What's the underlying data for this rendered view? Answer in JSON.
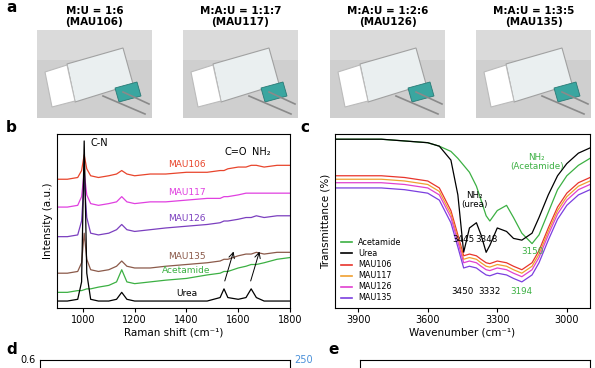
{
  "panel_labels": [
    "a",
    "b",
    "c",
    "d",
    "e"
  ],
  "photos": [
    {
      "ratio": "M:U = 1:6",
      "name": "(MAU106)"
    },
    {
      "ratio": "M:A:U = 1:1:7",
      "name": "(MAU117)"
    },
    {
      "ratio": "M:A:U = 1:2:6",
      "name": "(MAU126)"
    },
    {
      "ratio": "M:A:U = 1:3:5",
      "name": "(MAU135)"
    }
  ],
  "chart_data": [
    {
      "type": "line",
      "x_label": "Raman shift (cm⁻¹)",
      "y_label": "Intensity (a.u.)",
      "xlim": [
        900,
        1800
      ],
      "xticks": [
        1000,
        1200,
        1400,
        1600,
        1800
      ],
      "ylim": [
        0,
        10
      ],
      "tick_labels": "x",
      "x": [
        900,
        940,
        980,
        995,
        1005,
        1015,
        1030,
        1060,
        1100,
        1130,
        1150,
        1170,
        1200,
        1260,
        1320,
        1400,
        1480,
        1530,
        1545,
        1560,
        1600,
        1630,
        1650,
        1670,
        1700,
        1750,
        1800
      ],
      "series": [
        {
          "name": "MAU106",
          "color": "#e8452c",
          "values": [
            7.4,
            7.4,
            7.5,
            7.9,
            8.8,
            8.0,
            7.6,
            7.5,
            7.6,
            7.7,
            7.9,
            7.7,
            7.6,
            7.7,
            7.7,
            7.8,
            7.8,
            7.9,
            7.9,
            8.0,
            8.1,
            8.1,
            8.2,
            8.2,
            8.1,
            8.2,
            8.2
          ]
        },
        {
          "name": "MAU117",
          "color": "#e040e0",
          "values": [
            5.8,
            5.8,
            5.9,
            6.4,
            7.8,
            6.5,
            6.0,
            5.9,
            6.0,
            6.1,
            6.4,
            6.1,
            6.0,
            6.1,
            6.1,
            6.2,
            6.3,
            6.3,
            6.4,
            6.4,
            6.5,
            6.6,
            6.6,
            6.6,
            6.6,
            6.6,
            6.6
          ]
        },
        {
          "name": "MAU126",
          "color": "#7b3fbf",
          "values": [
            4.1,
            4.1,
            4.2,
            5.0,
            7.4,
            5.2,
            4.3,
            4.2,
            4.3,
            4.5,
            4.8,
            4.5,
            4.4,
            4.5,
            4.6,
            4.7,
            4.8,
            4.9,
            5.0,
            5.0,
            5.1,
            5.2,
            5.2,
            5.3,
            5.2,
            5.3,
            5.3
          ]
        },
        {
          "name": "MAU135",
          "color": "#8b5a4a",
          "values": [
            2.0,
            2.0,
            2.1,
            2.6,
            4.3,
            2.8,
            2.2,
            2.1,
            2.2,
            2.4,
            2.7,
            2.4,
            2.3,
            2.3,
            2.4,
            2.5,
            2.6,
            2.7,
            2.8,
            2.8,
            3.0,
            3.1,
            3.1,
            3.2,
            3.1,
            3.2,
            3.2
          ]
        },
        {
          "name": "Acetamide",
          "color": "#3cb043",
          "values": [
            0.9,
            0.9,
            1.0,
            1.0,
            1.05,
            1.1,
            1.1,
            1.2,
            1.3,
            1.5,
            2.2,
            1.5,
            1.4,
            1.5,
            1.6,
            1.7,
            1.9,
            2.0,
            2.1,
            2.1,
            2.3,
            2.4,
            2.5,
            2.5,
            2.6,
            2.8,
            2.9
          ]
        },
        {
          "name": "Urea",
          "color": "#000000",
          "values": [
            0.4,
            0.4,
            0.5,
            1.5,
            9.6,
            2.0,
            0.5,
            0.4,
            0.4,
            0.5,
            0.9,
            0.5,
            0.4,
            0.4,
            0.4,
            0.4,
            0.4,
            0.6,
            1.1,
            0.6,
            0.5,
            0.6,
            1.1,
            0.6,
            0.4,
            0.4,
            0.4
          ]
        }
      ],
      "annotations": [
        {
          "text": "C-N",
          "x": 1010,
          "color": "#000000"
        },
        {
          "text": "C=O",
          "x": 1590,
          "color": "#000000"
        },
        {
          "text": "NH₂",
          "x": 1690,
          "color": "#000000"
        }
      ]
    },
    {
      "type": "line",
      "x_label": "Wavenumber (cm⁻¹)",
      "y_label": "Transmittance (%)",
      "xlim": [
        4000,
        2900
      ],
      "xticks": [
        3900,
        3600,
        3300,
        3000
      ],
      "ylim": [
        0,
        10
      ],
      "tick_labels": "x",
      "legend": "lower left",
      "x": [
        4000,
        3900,
        3800,
        3700,
        3600,
        3550,
        3500,
        3470,
        3445,
        3420,
        3390,
        3370,
        3348,
        3332,
        3300,
        3260,
        3230,
        3194,
        3150,
        3120,
        3080,
        3040,
        3000,
        2950,
        2900
      ],
      "series": [
        {
          "name": "Acetamide",
          "color": "#3cb043",
          "values": [
            9.7,
            9.7,
            9.7,
            9.6,
            9.5,
            9.3,
            9.0,
            8.6,
            8.2,
            7.8,
            7.0,
            6.2,
            5.3,
            5.0,
            5.6,
            5.9,
            5.2,
            4.3,
            3.7,
            4.2,
            5.5,
            6.8,
            7.6,
            8.2,
            8.6
          ]
        },
        {
          "name": "Urea",
          "color": "#000000",
          "values": [
            9.7,
            9.7,
            9.7,
            9.6,
            9.5,
            9.3,
            8.5,
            6.5,
            3.2,
            4.6,
            4.9,
            4.2,
            3.2,
            3.6,
            4.6,
            4.4,
            4.0,
            3.9,
            4.3,
            5.2,
            6.5,
            7.6,
            8.3,
            8.9,
            9.2
          ]
        },
        {
          "name": "MAU106",
          "color": "#e8352c",
          "values": [
            7.6,
            7.6,
            7.6,
            7.5,
            7.3,
            6.9,
            5.6,
            4.2,
            3.0,
            3.1,
            3.0,
            2.8,
            2.6,
            2.55,
            2.7,
            2.6,
            2.4,
            2.2,
            2.6,
            3.3,
            4.6,
            5.8,
            6.6,
            7.2,
            7.5
          ]
        },
        {
          "name": "MAU117",
          "color": "#f0a030",
          "values": [
            7.4,
            7.4,
            7.4,
            7.3,
            7.1,
            6.7,
            5.4,
            4.0,
            2.8,
            2.9,
            2.8,
            2.6,
            2.4,
            2.35,
            2.5,
            2.4,
            2.2,
            2.0,
            2.4,
            3.1,
            4.4,
            5.6,
            6.4,
            7.0,
            7.3
          ]
        },
        {
          "name": "MAU126",
          "color": "#e040d0",
          "values": [
            7.2,
            7.2,
            7.2,
            7.1,
            6.9,
            6.5,
            5.2,
            3.8,
            2.6,
            2.7,
            2.6,
            2.4,
            2.2,
            2.15,
            2.3,
            2.2,
            2.0,
            1.8,
            2.2,
            2.9,
            4.2,
            5.4,
            6.2,
            6.8,
            7.1
          ]
        },
        {
          "name": "MAU135",
          "color": "#7b3fdf",
          "values": [
            6.9,
            6.9,
            6.9,
            6.8,
            6.6,
            6.2,
            4.9,
            3.5,
            2.3,
            2.4,
            2.3,
            2.1,
            1.9,
            1.85,
            2.0,
            1.9,
            1.7,
            1.5,
            1.9,
            2.6,
            3.9,
            5.1,
            5.9,
            6.5,
            6.8
          ]
        }
      ],
      "annotations": [
        {
          "text": "NH₂\n(urea)",
          "x": 3400,
          "color": "#000000"
        },
        {
          "text": "3445",
          "x": 3445,
          "color": "#000000"
        },
        {
          "text": "3348",
          "x": 3348,
          "color": "#000000"
        },
        {
          "text": "NH₂\n(Acetamide)",
          "x": 3130,
          "color": "#3cb043"
        },
        {
          "text": "3150",
          "x": 3150,
          "color": "#3cb043"
        },
        {
          "text": "3450",
          "x": 3450,
          "color": "#000000"
        },
        {
          "text": "3332",
          "x": 3332,
          "color": "#000000"
        },
        {
          "text": "3194",
          "x": 3194,
          "color": "#3cb043"
        }
      ]
    }
  ],
  "cropped_panels": [
    {
      "yticks": [
        0.6
      ],
      "y2": {
        "ticks": [
          250
        ],
        "color": "#4a90d9"
      }
    }
  ]
}
